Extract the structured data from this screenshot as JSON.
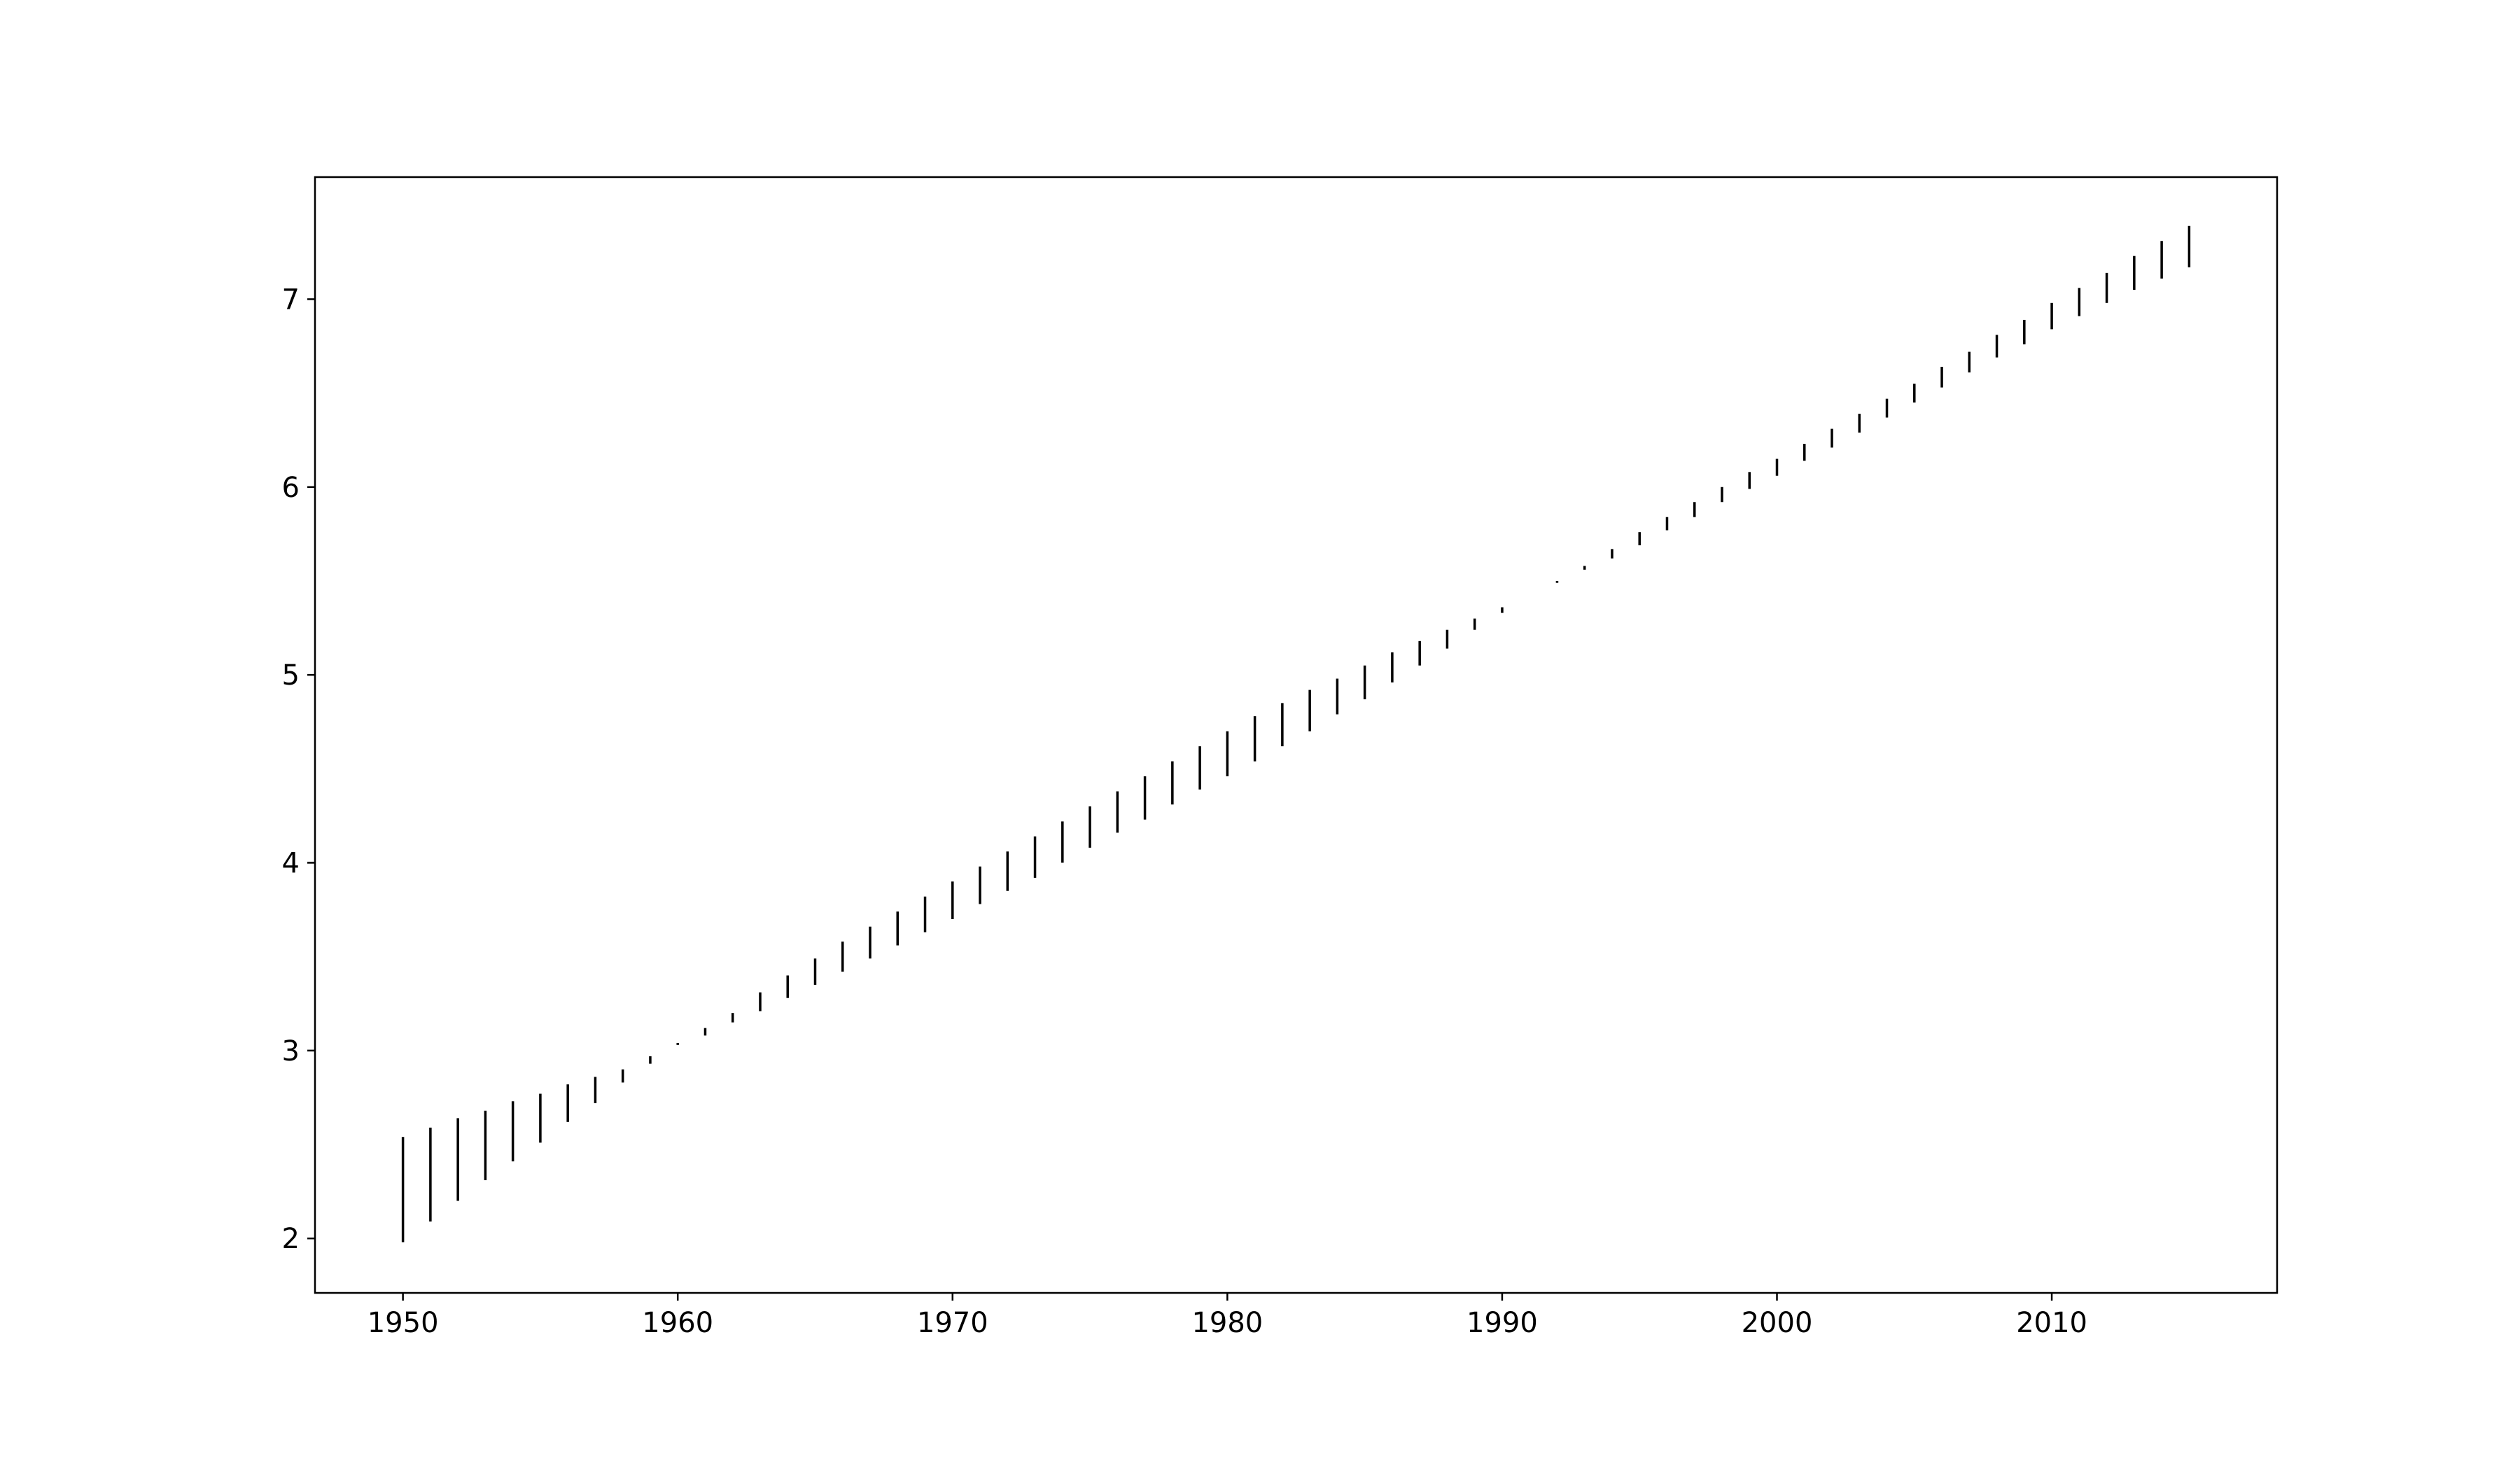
{
  "chart_data": {
    "type": "errorbar",
    "title": "",
    "xlabel": "",
    "ylabel": "",
    "xlim": [
      1946.8,
      2018.2
    ],
    "ylim": [
      1.71,
      7.65
    ],
    "xticks": [
      "1950",
      "1960",
      "1970",
      "1980",
      "1990",
      "2000",
      "2010"
    ],
    "yticks": [
      "2",
      "3",
      "4",
      "5",
      "6",
      "7"
    ],
    "grid": false,
    "legend": "none",
    "colors": {
      "bar": "#000000",
      "axes": "#000000",
      "background": "#ffffff"
    },
    "series": [
      {
        "x": [
          1950,
          1951,
          1952,
          1953,
          1954,
          1955,
          1956,
          1957,
          1958,
          1959,
          1960,
          1961,
          1962,
          1963,
          1964,
          1965,
          1966,
          1967,
          1968,
          1969,
          1970,
          1971,
          1972,
          1973,
          1974,
          1975,
          1976,
          1977,
          1978,
          1979,
          1980,
          1981,
          1982,
          1983,
          1984,
          1985,
          1986,
          1987,
          1988,
          1989,
          1990,
          1991,
          1992,
          1993,
          1994,
          1995,
          1996,
          1997,
          1998,
          1999,
          2000,
          2001,
          2002,
          2003,
          2004,
          2005,
          2006,
          2007,
          2008,
          2009,
          2010,
          2011,
          2012,
          2013,
          2014,
          2015
        ],
        "lower": [
          1.98,
          2.09,
          2.2,
          2.31,
          2.41,
          2.51,
          2.62,
          2.72,
          2.83,
          2.93,
          3.03,
          3.08,
          3.15,
          3.21,
          3.28,
          3.35,
          3.42,
          3.49,
          3.56,
          3.63,
          3.7,
          3.78,
          3.85,
          3.92,
          4.0,
          4.08,
          4.16,
          4.23,
          4.31,
          4.39,
          4.46,
          4.54,
          4.62,
          4.7,
          4.79,
          4.87,
          4.96,
          5.05,
          5.14,
          5.24,
          5.33,
          5.42,
          5.49,
          5.56,
          5.62,
          5.69,
          5.77,
          5.84,
          5.92,
          5.99,
          6.06,
          6.14,
          6.21,
          6.29,
          6.37,
          6.45,
          6.53,
          6.61,
          6.69,
          6.76,
          6.84,
          6.91,
          6.98,
          7.05,
          7.11,
          7.17
        ],
        "upper": [
          2.54,
          2.59,
          2.64,
          2.68,
          2.73,
          2.77,
          2.82,
          2.86,
          2.9,
          2.97,
          3.04,
          3.12,
          3.2,
          3.31,
          3.4,
          3.49,
          3.58,
          3.66,
          3.74,
          3.82,
          3.9,
          3.98,
          4.06,
          4.14,
          4.22,
          4.3,
          4.38,
          4.46,
          4.54,
          4.62,
          4.7,
          4.78,
          4.85,
          4.92,
          4.98,
          5.05,
          5.12,
          5.18,
          5.24,
          5.3,
          5.36,
          5.42,
          5.5,
          5.58,
          5.67,
          5.76,
          5.84,
          5.92,
          6.0,
          6.08,
          6.15,
          6.23,
          6.31,
          6.39,
          6.47,
          6.55,
          6.64,
          6.72,
          6.81,
          6.89,
          6.98,
          7.06,
          7.14,
          7.23,
          7.31,
          7.39
        ]
      }
    ]
  }
}
